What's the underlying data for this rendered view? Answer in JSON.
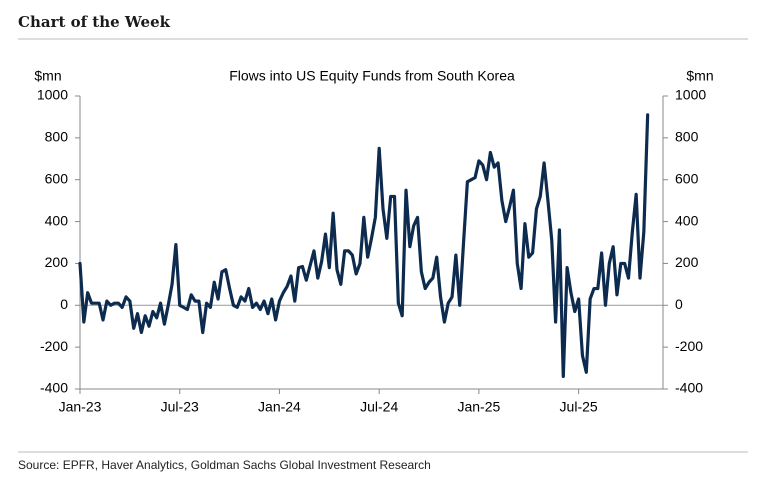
{
  "header": "Chart of the Week",
  "source": "Source: EPFR, Haver Analytics, Goldman Sachs Global Investment Research",
  "chart_data": {
    "type": "line",
    "title": "Flows into US Equity Funds from South Korea",
    "y_label": "$mn",
    "y2_label": "$mn",
    "categories": [
      "Jan-23",
      null,
      null,
      null,
      null,
      null,
      null,
      null,
      null,
      null,
      null,
      null,
      null,
      null,
      null,
      null,
      null,
      null,
      null,
      null,
      null,
      null,
      null,
      null,
      null,
      null,
      "Jul-23",
      null,
      null,
      null,
      null,
      null,
      null,
      null,
      null,
      null,
      null,
      null,
      null,
      null,
      null,
      null,
      null,
      null,
      null,
      null,
      null,
      null,
      null,
      null,
      null,
      null,
      "Jan-24",
      null,
      null,
      null,
      null,
      null,
      null,
      null,
      null,
      null,
      null,
      null,
      null,
      null,
      null,
      null,
      null,
      null,
      null,
      null,
      null,
      null,
      null,
      null,
      null,
      null,
      "Jul-24",
      null,
      null,
      null,
      null,
      null,
      null,
      null,
      null,
      null,
      null,
      null,
      null,
      null,
      null,
      null,
      null,
      null,
      null,
      null,
      null,
      null,
      null,
      null,
      null,
      null,
      "Jan-25",
      null,
      null,
      null,
      null,
      null,
      null,
      null,
      null,
      null,
      null,
      null,
      null,
      null,
      null,
      null,
      null,
      null,
      null,
      null,
      null,
      null,
      null,
      null,
      null,
      null,
      "Jul-25",
      null,
      null,
      null,
      null,
      null,
      null,
      null,
      null,
      null,
      null,
      null,
      null,
      null,
      null,
      null,
      null,
      null,
      null,
      null,
      null,
      null,
      null
    ],
    "series": [
      {
        "name": "Flows",
        "color": "#0d2b4e",
        "values": [
          200,
          -80,
          60,
          10,
          10,
          10,
          -70,
          20,
          0,
          10,
          10,
          -10,
          40,
          20,
          -110,
          -40,
          -130,
          -50,
          -100,
          -30,
          -60,
          10,
          -90,
          0,
          100,
          290,
          0,
          -10,
          -20,
          50,
          20,
          20,
          -130,
          10,
          -10,
          110,
          30,
          160,
          170,
          80,
          0,
          -10,
          40,
          20,
          80,
          -10,
          10,
          -20,
          20,
          -40,
          30,
          -70,
          20,
          60,
          90,
          140,
          20,
          180,
          185,
          120,
          190,
          260,
          130,
          210,
          340,
          180,
          440,
          170,
          100,
          260,
          260,
          240,
          150,
          200,
          420,
          230,
          320,
          420,
          750,
          460,
          320,
          520,
          520,
          10,
          -50,
          550,
          280,
          380,
          420,
          160,
          80,
          110,
          130,
          230,
          40,
          -80,
          10,
          40,
          240,
          0,
          300,
          590,
          600,
          610,
          690,
          670,
          600,
          730,
          660,
          680,
          500,
          400,
          470,
          550,
          200,
          80,
          390,
          230,
          250,
          460,
          520,
          680,
          500,
          310,
          -80,
          360,
          -340,
          180,
          60,
          -30,
          30,
          -240,
          -320,
          30,
          80,
          80,
          250,
          0,
          200,
          280,
          50,
          200,
          200,
          130,
          350,
          530,
          130,
          350,
          910,
          null,
          null,
          null,
          null
        ]
      }
    ],
    "ylim": [
      -400,
      1000
    ],
    "yticks": [
      -400,
      -200,
      0,
      200,
      400,
      600,
      800,
      1000
    ],
    "y2lim": [
      -400,
      1000
    ],
    "y2ticks": [
      -400,
      -200,
      0,
      200,
      400,
      600,
      800,
      1000
    ]
  }
}
